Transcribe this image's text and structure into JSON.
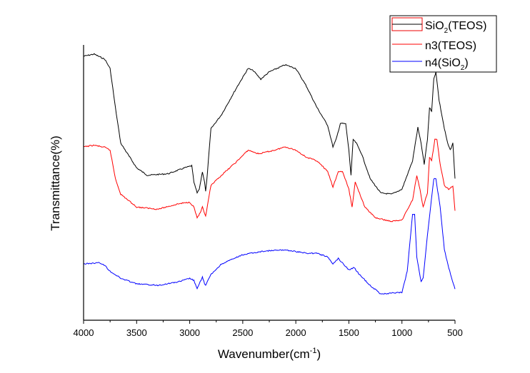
{
  "chart_data": {
    "type": "line",
    "title": "",
    "xlabel": "Wavenumber(cm",
    "xlabel_sup": "-1",
    "xlabel_end": ")",
    "ylabel": "Transmittance(%)",
    "xlim": [
      4000,
      500
    ],
    "ylim": [
      0,
      90
    ],
    "x_ticks": [
      "4000",
      "3500",
      "3000",
      "2500",
      "2000",
      "1500",
      "1000",
      "500"
    ],
    "x_tick_values": [
      4000,
      3500,
      3000,
      2500,
      2000,
      1500,
      1000,
      500
    ],
    "legend_position": "top-right",
    "series": [
      {
        "name": "SiO2(TEOS)",
        "label_main": "SiO",
        "label_sub": "2",
        "label_end": "(TEOS)",
        "color": "#000000",
        "x": [
          4000,
          3900,
          3800,
          3750,
          3700,
          3650,
          3500,
          3400,
          3200,
          3050,
          2980,
          2960,
          2930,
          2910,
          2880,
          2860,
          2850,
          2840,
          2800,
          2700,
          2550,
          2450,
          2400,
          2330,
          2250,
          2100,
          2000,
          1900,
          1800,
          1700,
          1650,
          1620,
          1580,
          1530,
          1500,
          1480,
          1460,
          1430,
          1380,
          1300,
          1200,
          1100,
          1000,
          900,
          850,
          820,
          790,
          760,
          740,
          720,
          700,
          680,
          650,
          600,
          570,
          545,
          520,
          500
        ],
        "y": [
          86.3,
          87,
          85.3,
          82.3,
          69.5,
          57.9,
          49.8,
          47.4,
          47.9,
          49.8,
          50.5,
          45.1,
          41.6,
          42.8,
          48.6,
          45.1,
          42.1,
          45.1,
          62.6,
          67.2,
          76.5,
          82.3,
          81.6,
          78.8,
          81.2,
          83.5,
          82.3,
          76.5,
          69.5,
          63.7,
          56.7,
          59.1,
          64.4,
          64.2,
          55.6,
          47.4,
          59.1,
          57.9,
          54.4,
          46.3,
          41.6,
          41.2,
          42.8,
          52.1,
          63.0,
          57.9,
          50.9,
          59.1,
          69.5,
          68.4,
          78.8,
          81.2,
          71.9,
          62.6,
          57.9,
          55.6,
          57.9,
          46.3
        ]
      },
      {
        "name": "n3(TEOS)",
        "label_main": "n3(TEOS)",
        "color": "#ff0000",
        "x": [
          4000,
          3900,
          3800,
          3750,
          3700,
          3650,
          3500,
          3300,
          3100,
          3000,
          2960,
          2930,
          2900,
          2880,
          2860,
          2850,
          2800,
          2700,
          2550,
          2450,
          2350,
          2200,
          2100,
          2000,
          1900,
          1800,
          1700,
          1650,
          1600,
          1560,
          1500,
          1470,
          1440,
          1400,
          1350,
          1250,
          1100,
          1000,
          900,
          860,
          830,
          800,
          760,
          740,
          720,
          690,
          670,
          640,
          600,
          560,
          520,
          500
        ],
        "y": [
          56.7,
          57.2,
          56.5,
          55.6,
          46.3,
          41.2,
          37.0,
          36.3,
          38.1,
          38.6,
          37.0,
          33.5,
          35.1,
          37.0,
          34.7,
          34.0,
          44.0,
          47.4,
          52.1,
          55.6,
          54.4,
          55.6,
          56.7,
          55.6,
          53.3,
          52.1,
          48.6,
          43.5,
          48.6,
          48.6,
          42.8,
          37.0,
          45.1,
          41.6,
          37.0,
          33.5,
          32.3,
          32.8,
          39.3,
          47.4,
          42.8,
          37.0,
          41.6,
          53.3,
          52.1,
          59.1,
          59.1,
          50.9,
          44.0,
          42.8,
          44.0,
          35.8
        ]
      },
      {
        "name": "n4(SiO2)",
        "label_main": "n4(SiO",
        "label_sub": "2",
        "label_end": ")",
        "color": "#0000ff",
        "x": [
          4000,
          3850,
          3800,
          3750,
          3700,
          3650,
          3500,
          3300,
          3100,
          3000,
          2960,
          2930,
          2900,
          2880,
          2860,
          2850,
          2800,
          2700,
          2500,
          2300,
          2100,
          1900,
          1800,
          1700,
          1650,
          1600,
          1500,
          1450,
          1400,
          1300,
          1200,
          1000,
          950,
          900,
          880,
          860,
          820,
          800,
          760,
          700,
          680,
          640,
          600,
          550,
          500
        ],
        "y": [
          18.4,
          18.8,
          17.9,
          16.0,
          14.9,
          13.7,
          11.9,
          11.4,
          12.6,
          13.7,
          13.0,
          10.2,
          12.6,
          14.2,
          11.9,
          11.4,
          14.9,
          18.4,
          21.4,
          22.6,
          23.0,
          21.9,
          21.9,
          20.7,
          18.4,
          20.2,
          16.5,
          17.2,
          14.9,
          11.4,
          8.6,
          9.1,
          16.0,
          34.7,
          34.7,
          20.7,
          12.6,
          13.7,
          27.7,
          46.3,
          46.3,
          37.0,
          23.0,
          16.0,
          10.2
        ]
      }
    ]
  }
}
